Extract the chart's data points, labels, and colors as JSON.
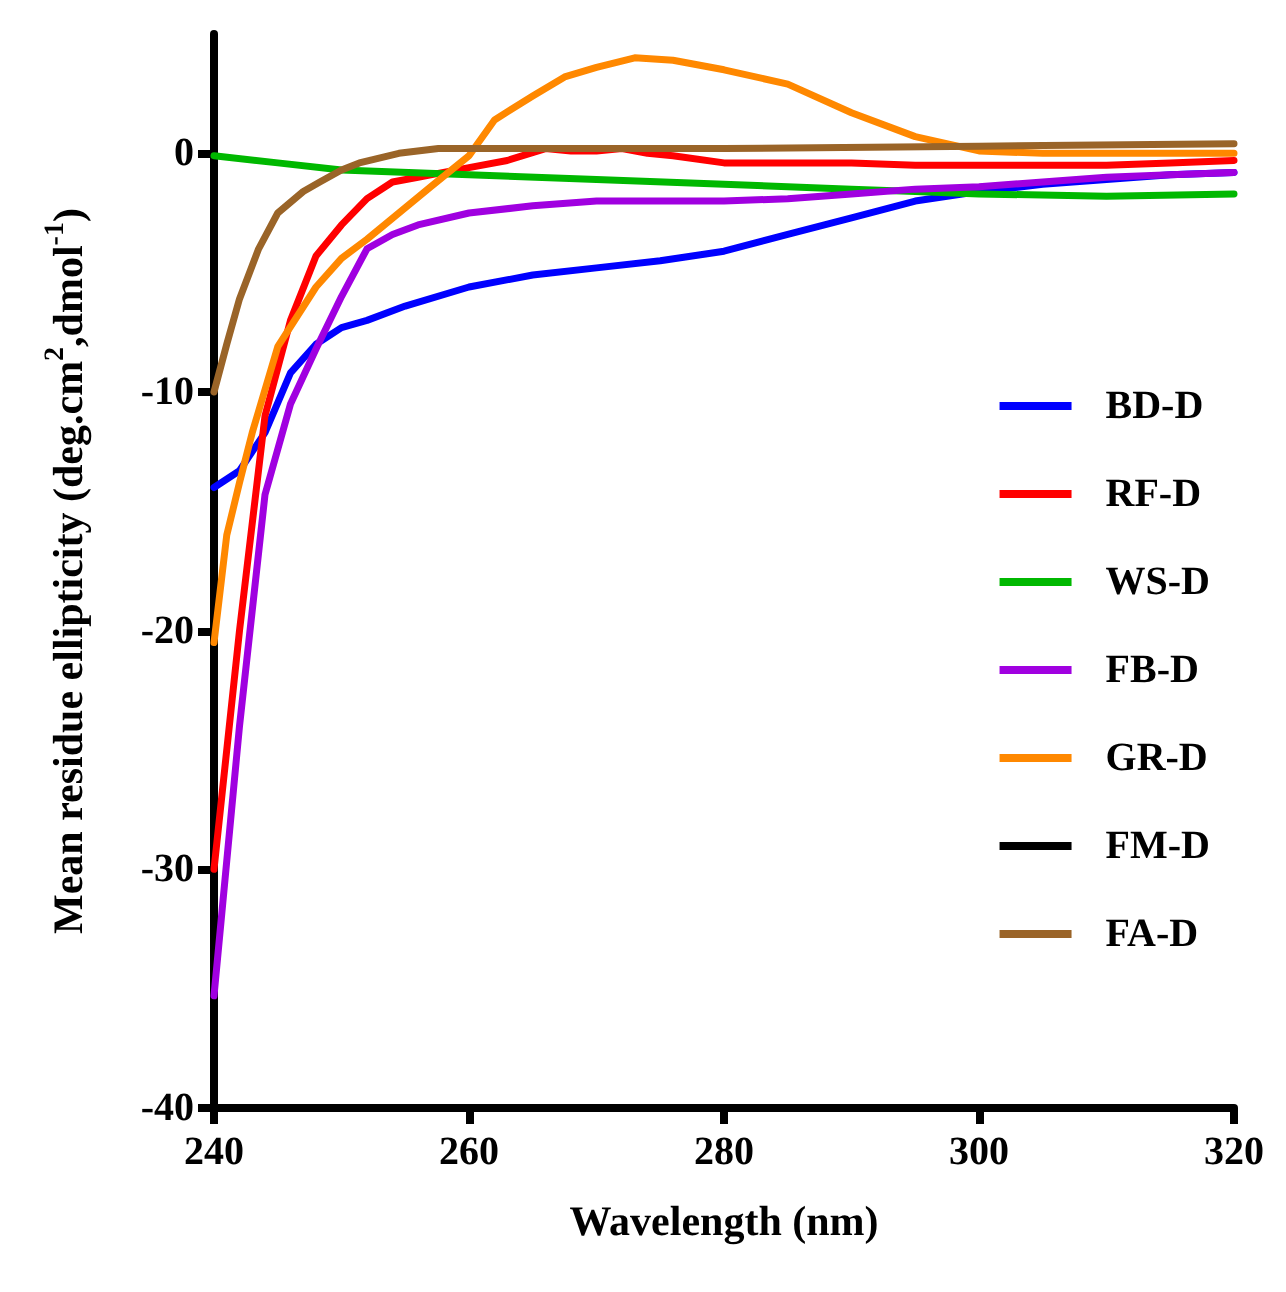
{
  "chart_data": {
    "type": "line",
    "xlabel": "Wavelength (nm)",
    "ylabel": "Mean residue ellipticity (deg.cm$^{2}$,dmol$^{-1}$)",
    "xlim": [
      240,
      320
    ],
    "ylim": [
      -40,
      5
    ],
    "xticks": [
      240,
      260,
      280,
      300,
      320
    ],
    "yticks": [
      -40,
      -30,
      -20,
      -10,
      0
    ],
    "grid": false,
    "legend": "right",
    "marker": "none",
    "line_style": "solid",
    "series": [
      {
        "name": "BD-D",
        "color": "#0000ff",
        "x": [
          240,
          242,
          244,
          246,
          248,
          250,
          252,
          255,
          260,
          265,
          270,
          275,
          280,
          285,
          290,
          295,
          300,
          305,
          310,
          315,
          320
        ],
        "values": [
          -14,
          -13.3,
          -11.7,
          -9.2,
          -8,
          -7.3,
          -7,
          -6.4,
          -5.6,
          -5.1,
          -4.8,
          -4.5,
          -4.1,
          -3.4,
          -2.7,
          -2,
          -1.6,
          -1.3,
          -1.1,
          -0.9,
          -0.8
        ]
      },
      {
        "name": "RF-D",
        "color": "#ff0000",
        "x": [
          240,
          242,
          244,
          246,
          248,
          250,
          252,
          254,
          256,
          258,
          260,
          263,
          266,
          268,
          270,
          272,
          274,
          276,
          280,
          285,
          290,
          295,
          300,
          305,
          310,
          315,
          320
        ],
        "values": [
          -30,
          -20,
          -11,
          -7,
          -4.3,
          -3,
          -1.9,
          -1.2,
          -1,
          -0.8,
          -0.6,
          -0.3,
          0.2,
          0.1,
          0.1,
          0.2,
          0,
          -0.1,
          -0.4,
          -0.4,
          -0.4,
          -0.5,
          -0.5,
          -0.5,
          -0.5,
          -0.4,
          -0.3
        ]
      },
      {
        "name": "WS-D",
        "color": "#00b800",
        "x": [
          240,
          245,
          250,
          260,
          270,
          280,
          290,
          295,
          300,
          310,
          320
        ],
        "values": [
          -0.1,
          -0.4,
          -0.7,
          -0.9,
          -1.1,
          -1.3,
          -1.5,
          -1.6,
          -1.7,
          -1.8,
          -1.7
        ]
      },
      {
        "name": "FB-D",
        "color": "#a000e0",
        "x": [
          240,
          242,
          244,
          246,
          248,
          250,
          252,
          254,
          256,
          260,
          265,
          270,
          280,
          285,
          290,
          295,
          300,
          305,
          310,
          315,
          320
        ],
        "values": [
          -35.3,
          -24,
          -14.3,
          -10.5,
          -8.2,
          -6,
          -4,
          -3.4,
          -3,
          -2.5,
          -2.2,
          -2,
          -2,
          -1.9,
          -1.7,
          -1.5,
          -1.4,
          -1.2,
          -1,
          -0.9,
          -0.8
        ]
      },
      {
        "name": "GR-D",
        "color": "#ff8800",
        "x": [
          240,
          241,
          242,
          243,
          245,
          248,
          250,
          252,
          254.5,
          257,
          260,
          262,
          265,
          267.5,
          270,
          273,
          276,
          280,
          285,
          290,
          295,
          300,
          305,
          310,
          320
        ],
        "values": [
          -20.5,
          -16,
          -13.8,
          -11.7,
          -8.1,
          -5.6,
          -4.4,
          -3.6,
          -2.5,
          -1.4,
          -0.1,
          1.4,
          2.4,
          3.2,
          3.6,
          4,
          3.9,
          3.5,
          2.9,
          1.7,
          0.7,
          0.1,
          0,
          0,
          0
        ]
      },
      {
        "name": "FM-D",
        "color": "#000000"
      },
      {
        "name": "FA-D",
        "color": "#9a6428",
        "x": [
          240,
          241,
          242,
          243.5,
          245,
          247,
          248.3,
          250,
          251.4,
          254.5,
          257.6,
          260,
          280,
          300,
          320
        ],
        "values": [
          -10,
          -8,
          -6.1,
          -4,
          -2.5,
          -1.6,
          -1.2,
          -0.7,
          -0.4,
          0,
          0.2,
          0.2,
          0.2,
          0.3,
          0.4
        ]
      }
    ]
  }
}
